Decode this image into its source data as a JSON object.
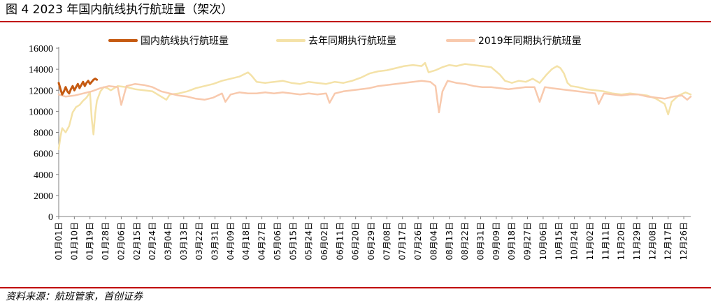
{
  "figure": {
    "title": "图 4 2023 年国内航线执行航班量（架次）",
    "source": "资料来源：航班管家，首创证券"
  },
  "colors": {
    "accent_rule": "#c00000",
    "series_2023": "#c55a11",
    "series_last_year": "#f4e2a8",
    "series_2019": "#f8c9ad",
    "axis": "#808080"
  },
  "chart_data": {
    "type": "line",
    "xlabel": "",
    "ylabel": "",
    "ylim": [
      0,
      16000
    ],
    "yticks": [
      0,
      2000,
      4000,
      6000,
      8000,
      10000,
      12000,
      14000,
      16000
    ],
    "grid": false,
    "legend_position": "top",
    "x_tick_labels": [
      "01月01日",
      "01月10日",
      "01月19日",
      "01月28日",
      "02月06日",
      "02月15日",
      "02月24日",
      "03月04日",
      "03月13日",
      "03月22日",
      "03月31日",
      "04月09日",
      "04月18日",
      "04月27日",
      "05月06日",
      "05月15日",
      "05月24日",
      "06月02日",
      "06月11日",
      "06月20日",
      "06月29日",
      "07月08日",
      "07月17日",
      "07月26日",
      "08月04日",
      "08月13日",
      "08月22日",
      "08月31日",
      "09月09日",
      "09月18日",
      "09月27日",
      "10月06日",
      "10月15日",
      "10月24日",
      "11月02日",
      "11月11日",
      "11月20日",
      "11月29日",
      "12月08日",
      "12月17日",
      "12月26日"
    ],
    "x_day_range": [
      1,
      365
    ],
    "series": [
      {
        "name": "国内航线执行航班量",
        "color": "#c55a11",
        "width": 3,
        "points": [
          [
            1,
            12700
          ],
          [
            2,
            12100
          ],
          [
            3,
            11600
          ],
          [
            4,
            11900
          ],
          [
            5,
            12300
          ],
          [
            6,
            11900
          ],
          [
            7,
            11700
          ],
          [
            8,
            12100
          ],
          [
            9,
            12400
          ],
          [
            10,
            12000
          ],
          [
            11,
            12300
          ],
          [
            12,
            12600
          ],
          [
            13,
            12200
          ],
          [
            14,
            12500
          ],
          [
            15,
            12800
          ],
          [
            16,
            12400
          ],
          [
            17,
            12700
          ],
          [
            18,
            12900
          ],
          [
            19,
            12600
          ],
          [
            20,
            12800
          ],
          [
            21,
            13000
          ],
          [
            22,
            13100
          ],
          [
            23,
            13000
          ]
        ]
      },
      {
        "name": "去年同期执行航班量",
        "color": "#f4e2a8",
        "width": 2.5,
        "points": [
          [
            1,
            6400
          ],
          [
            2,
            7600
          ],
          [
            3,
            8400
          ],
          [
            5,
            8000
          ],
          [
            7,
            8600
          ],
          [
            9,
            9900
          ],
          [
            11,
            10400
          ],
          [
            13,
            10600
          ],
          [
            15,
            11000
          ],
          [
            17,
            11300
          ],
          [
            19,
            11800
          ],
          [
            20,
            9300
          ],
          [
            21,
            7800
          ],
          [
            22,
            9800
          ],
          [
            23,
            11000
          ],
          [
            25,
            11900
          ],
          [
            27,
            12300
          ],
          [
            29,
            12200
          ],
          [
            31,
            12000
          ],
          [
            35,
            12400
          ],
          [
            40,
            12300
          ],
          [
            45,
            12100
          ],
          [
            50,
            12000
          ],
          [
            55,
            11900
          ],
          [
            60,
            11400
          ],
          [
            63,
            11100
          ],
          [
            65,
            11600
          ],
          [
            70,
            11700
          ],
          [
            75,
            11900
          ],
          [
            80,
            12200
          ],
          [
            85,
            12400
          ],
          [
            90,
            12600
          ],
          [
            95,
            12900
          ],
          [
            100,
            13100
          ],
          [
            105,
            13300
          ],
          [
            110,
            13700
          ],
          [
            112,
            13400
          ],
          [
            115,
            12800
          ],
          [
            120,
            12700
          ],
          [
            125,
            12800
          ],
          [
            130,
            12900
          ],
          [
            135,
            12700
          ],
          [
            140,
            12600
          ],
          [
            145,
            12800
          ],
          [
            150,
            12700
          ],
          [
            155,
            12600
          ],
          [
            160,
            12800
          ],
          [
            165,
            12700
          ],
          [
            170,
            12900
          ],
          [
            175,
            13200
          ],
          [
            180,
            13600
          ],
          [
            185,
            13800
          ],
          [
            190,
            13900
          ],
          [
            195,
            14100
          ],
          [
            200,
            14300
          ],
          [
            205,
            14400
          ],
          [
            210,
            14300
          ],
          [
            212,
            14600
          ],
          [
            214,
            13700
          ],
          [
            218,
            13900
          ],
          [
            222,
            14200
          ],
          [
            226,
            14400
          ],
          [
            230,
            14300
          ],
          [
            235,
            14500
          ],
          [
            240,
            14400
          ],
          [
            245,
            14300
          ],
          [
            250,
            14200
          ],
          [
            255,
            13500
          ],
          [
            258,
            12900
          ],
          [
            262,
            12700
          ],
          [
            266,
            12900
          ],
          [
            270,
            12800
          ],
          [
            274,
            13100
          ],
          [
            278,
            12700
          ],
          [
            282,
            13500
          ],
          [
            285,
            14000
          ],
          [
            288,
            14300
          ],
          [
            290,
            14100
          ],
          [
            292,
            13600
          ],
          [
            294,
            12700
          ],
          [
            296,
            12400
          ],
          [
            300,
            12300
          ],
          [
            305,
            12100
          ],
          [
            310,
            12000
          ],
          [
            315,
            11900
          ],
          [
            320,
            11700
          ],
          [
            325,
            11600
          ],
          [
            330,
            11700
          ],
          [
            335,
            11600
          ],
          [
            340,
            11500
          ],
          [
            345,
            11200
          ],
          [
            350,
            10700
          ],
          [
            352,
            9700
          ],
          [
            354,
            10900
          ],
          [
            358,
            11500
          ],
          [
            362,
            11800
          ],
          [
            365,
            11600
          ]
        ]
      },
      {
        "name": "2019年同期执行航班量",
        "color": "#f8c9ad",
        "width": 2.5,
        "points": [
          [
            1,
            11600
          ],
          [
            5,
            11400
          ],
          [
            10,
            11500
          ],
          [
            15,
            11700
          ],
          [
            20,
            11900
          ],
          [
            25,
            12200
          ],
          [
            30,
            12400
          ],
          [
            35,
            12300
          ],
          [
            37,
            10600
          ],
          [
            40,
            12400
          ],
          [
            45,
            12600
          ],
          [
            50,
            12500
          ],
          [
            55,
            12300
          ],
          [
            60,
            11900
          ],
          [
            65,
            11700
          ],
          [
            70,
            11500
          ],
          [
            75,
            11400
          ],
          [
            80,
            11200
          ],
          [
            85,
            11100
          ],
          [
            90,
            11300
          ],
          [
            95,
            11700
          ],
          [
            97,
            10900
          ],
          [
            100,
            11600
          ],
          [
            105,
            11800
          ],
          [
            110,
            11700
          ],
          [
            115,
            11700
          ],
          [
            120,
            11800
          ],
          [
            125,
            11700
          ],
          [
            130,
            11800
          ],
          [
            135,
            11700
          ],
          [
            140,
            11600
          ],
          [
            145,
            11700
          ],
          [
            150,
            11600
          ],
          [
            155,
            11700
          ],
          [
            157,
            10800
          ],
          [
            160,
            11700
          ],
          [
            165,
            11900
          ],
          [
            170,
            12000
          ],
          [
            175,
            12100
          ],
          [
            180,
            12200
          ],
          [
            185,
            12400
          ],
          [
            190,
            12500
          ],
          [
            195,
            12600
          ],
          [
            200,
            12700
          ],
          [
            205,
            12800
          ],
          [
            210,
            12900
          ],
          [
            215,
            12800
          ],
          [
            218,
            12400
          ],
          [
            220,
            9900
          ],
          [
            222,
            11900
          ],
          [
            225,
            12900
          ],
          [
            230,
            12700
          ],
          [
            235,
            12600
          ],
          [
            240,
            12400
          ],
          [
            245,
            12300
          ],
          [
            250,
            12300
          ],
          [
            255,
            12200
          ],
          [
            260,
            12100
          ],
          [
            265,
            12200
          ],
          [
            270,
            12300
          ],
          [
            275,
            12300
          ],
          [
            278,
            10900
          ],
          [
            281,
            12300
          ],
          [
            285,
            12200
          ],
          [
            290,
            12100
          ],
          [
            295,
            12000
          ],
          [
            300,
            11900
          ],
          [
            305,
            11800
          ],
          [
            310,
            11700
          ],
          [
            312,
            10700
          ],
          [
            315,
            11700
          ],
          [
            320,
            11600
          ],
          [
            325,
            11500
          ],
          [
            330,
            11600
          ],
          [
            335,
            11600
          ],
          [
            340,
            11400
          ],
          [
            345,
            11300
          ],
          [
            350,
            11200
          ],
          [
            355,
            11400
          ],
          [
            360,
            11500
          ],
          [
            363,
            11100
          ],
          [
            365,
            11400
          ]
        ]
      }
    ]
  }
}
